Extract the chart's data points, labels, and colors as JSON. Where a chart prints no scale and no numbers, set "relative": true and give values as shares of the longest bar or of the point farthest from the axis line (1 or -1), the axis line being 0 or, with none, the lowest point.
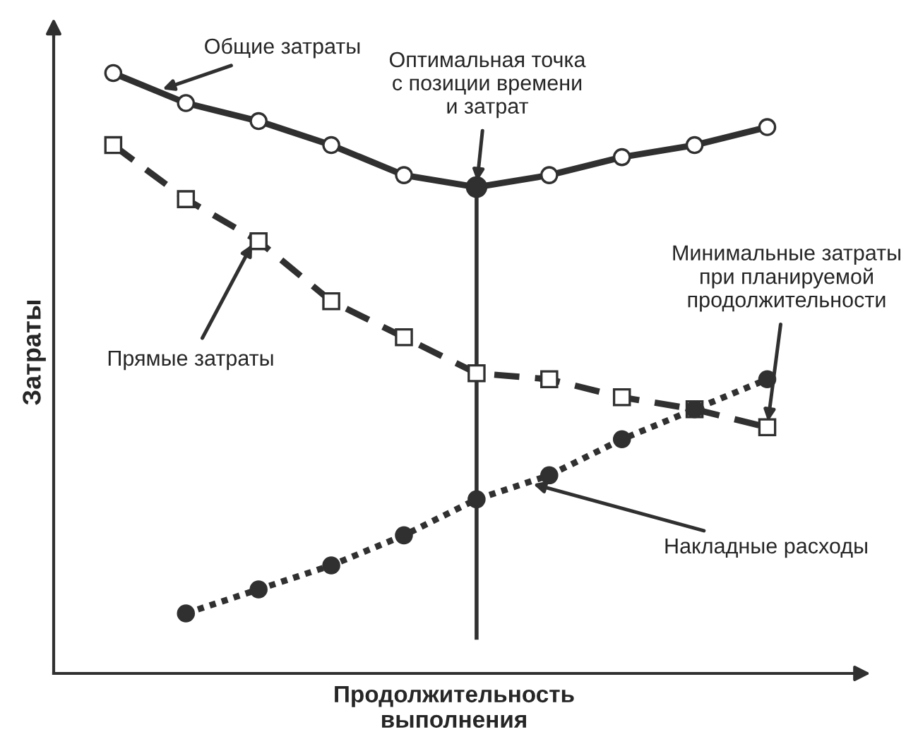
{
  "chart_data": {
    "type": "line",
    "relative": true,
    "xlabel": "Продолжительность\nвыполнения",
    "ylabel": "Затраты",
    "categories": [
      null,
      null,
      null,
      null,
      null,
      null,
      null,
      null,
      null,
      null
    ],
    "series": [
      {
        "name": "Общие затраты",
        "color": "#303030",
        "marker": "circle",
        "line_style": "solid",
        "values": [
          1.0,
          0.95,
          0.92,
          0.88,
          0.83,
          0.81,
          0.83,
          0.86,
          0.88,
          0.91
        ]
      },
      {
        "name": "Прямые затраты",
        "color": "#303030",
        "marker": "square",
        "line_style": "dashed",
        "values": [
          0.88,
          0.79,
          0.72,
          0.62,
          0.56,
          0.5,
          0.49,
          0.46,
          0.44,
          0.41
        ]
      },
      {
        "name": "Накладные расходы",
        "color": "#303030",
        "marker": "circle",
        "line_style": "dotted",
        "values": [
          null,
          0.1,
          0.14,
          0.18,
          0.23,
          0.29,
          0.33,
          0.39,
          0.44,
          0.49
        ]
      }
    ],
    "annotations": [
      "Оптимальная точка\nс позиции времени\nи затрат",
      "Минимальные затраты\nпри планируемой\nпродолжительности"
    ],
    "tick_labels": false,
    "grid": false,
    "legend": false
  }
}
